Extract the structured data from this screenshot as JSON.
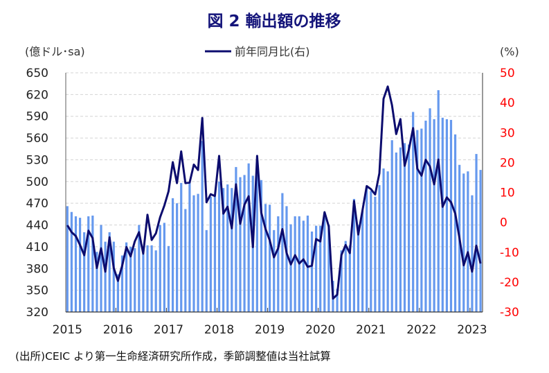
{
  "chart_data": {
    "type": "bar+line",
    "title": "図 2  輸出額の推移",
    "left_unit": "(億ドル･sa)",
    "right_unit": "(%)",
    "legend": [
      {
        "label": "前年同月比(右)",
        "color": "#0c0c6e",
        "type": "line"
      }
    ],
    "left_axis": {
      "ylim": [
        320,
        650
      ],
      "ticks": [
        "650",
        "620",
        "590",
        "560",
        "530",
        "500",
        "470",
        "440",
        "410",
        "380",
        "350",
        "320"
      ]
    },
    "right_axis": {
      "ylim": [
        -30,
        50
      ],
      "ticks": [
        "50",
        "40",
        "30",
        "20",
        "10",
        "0",
        "-10",
        "-20",
        "-30"
      ],
      "color": "#ff0000"
    },
    "x_labels": [
      "2015",
      "2016",
      "2017",
      "2018",
      "2019",
      "2020",
      "2021",
      "2022",
      "2023"
    ],
    "x_start": "2015-01",
    "x_end": "2023-03",
    "grid": "horizontal dashed",
    "bar_color": "#6699ee",
    "bar_series_name": "輸出額 (億ドル・季節調整値)",
    "bars": [
      466,
      458,
      452,
      450,
      430,
      452,
      453,
      403,
      440,
      417,
      430,
      417,
      372,
      398,
      416,
      410,
      408,
      440,
      400,
      412,
      412,
      405,
      440,
      443,
      411,
      477,
      470,
      498,
      462,
      499,
      481,
      483,
      556,
      433,
      479,
      479,
      500,
      491,
      496,
      491,
      520,
      506,
      509,
      525,
      508,
      510,
      502,
      469,
      468,
      433,
      452,
      484,
      466,
      441,
      452,
      452,
      446,
      453,
      431,
      439,
      439,
      450,
      440,
      363,
      352,
      405,
      418,
      412,
      476,
      440,
      460,
      492,
      487,
      479,
      495,
      518,
      514,
      557,
      540,
      547,
      553,
      551,
      596,
      571,
      573,
      584,
      601,
      586,
      626,
      588,
      586,
      585,
      565,
      523,
      511,
      514,
      481,
      538,
      516
    ],
    "line_series_name": "前年同月比(右)",
    "line": [
      -1.0,
      -3.3,
      -4.6,
      -7.6,
      -11.0,
      -2.8,
      -5.3,
      -15.3,
      -8.7,
      -16.5,
      -5.0,
      -15.3,
      -19.6,
      -14.5,
      -8.3,
      -11.4,
      -6.4,
      -3.3,
      -10.5,
      2.5,
      -5.9,
      -3.7,
      1.7,
      5.6,
      10.4,
      20.1,
      13.1,
      23.7,
      13.1,
      13.3,
      19.3,
      17.5,
      34.9,
      6.7,
      9.4,
      8.8,
      22.2,
      2.9,
      5.2,
      -2.0,
      12.7,
      -0.5,
      5.9,
      8.7,
      -8.3,
      22.2,
      3.2,
      -2.2,
      -6.0,
      -11.7,
      -8.7,
      -2.3,
      -10.3,
      -14.1,
      -11.0,
      -13.8,
      -12.4,
      -14.9,
      -14.5,
      -5.6,
      -6.4,
      3.4,
      -1.4,
      -25.5,
      -24.2,
      -11.0,
      -7.6,
      -10.3,
      7.1,
      -4.1,
      4.0,
      12.1,
      11.1,
      9.3,
      16.4,
      41.3,
      45.4,
      39.2,
      29.5,
      34.5,
      18.9,
      24.3,
      31.5,
      17.9,
      15.6,
      20.9,
      18.7,
      12.7,
      21.0,
      5.2,
      8.3,
      6.7,
      2.9,
      -5.3,
      -14.4,
      -10.0,
      -16.5,
      -7.8,
      -13.8
    ]
  },
  "footnote": "(出所)CEIC より第一生命経済研究所作成，季節調整値は当社試算"
}
